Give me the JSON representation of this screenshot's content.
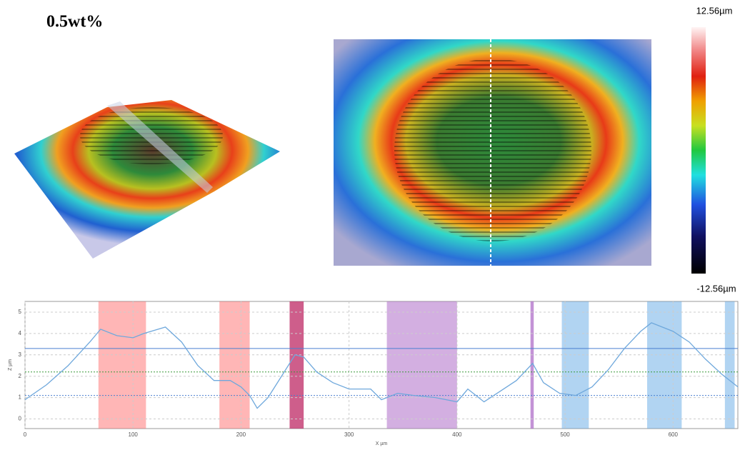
{
  "title": "0.5wt%",
  "colorbar": {
    "max_label": "12.56µm",
    "min_label": "-12.56µm"
  },
  "chart_data": {
    "type": "line",
    "xlabel": "X µm",
    "ylabel": "Z µm",
    "xlim": [
      0,
      660
    ],
    "ylim": [
      -0.45,
      5.5
    ],
    "xticks": [
      0,
      100,
      200,
      300,
      400,
      500,
      600
    ],
    "yticks": [
      0,
      1,
      2,
      3,
      4,
      5
    ],
    "grid": true,
    "x": [
      0,
      20,
      40,
      60,
      70,
      85,
      100,
      110,
      130,
      145,
      160,
      175,
      190,
      200,
      208,
      215,
      225,
      240,
      250,
      258,
      270,
      285,
      300,
      320,
      330,
      345,
      360,
      380,
      400,
      410,
      425,
      440,
      455,
      470,
      480,
      495,
      510,
      525,
      540,
      555,
      570,
      580,
      590,
      600,
      615,
      630,
      645,
      660
    ],
    "series": [
      {
        "color": "#6fa8dc",
        "values": [
          0.9,
          1.6,
          2.5,
          3.6,
          4.2,
          3.9,
          3.8,
          4.0,
          4.3,
          3.6,
          2.5,
          1.8,
          1.8,
          1.5,
          1.1,
          0.5,
          1.0,
          2.2,
          3.0,
          2.9,
          2.2,
          1.7,
          1.4,
          1.4,
          0.9,
          1.2,
          1.1,
          1.0,
          0.8,
          1.4,
          0.8,
          1.3,
          1.8,
          2.6,
          1.7,
          1.2,
          1.1,
          1.5,
          2.3,
          3.3,
          4.1,
          4.5,
          4.3,
          4.1,
          3.6,
          2.8,
          2.1,
          1.5
        ]
      }
    ],
    "bands": [
      {
        "x": [
          68,
          112
        ],
        "color": "rgba(255,110,110,0.5)"
      },
      {
        "x": [
          180,
          208
        ],
        "color": "rgba(255,110,110,0.5)"
      },
      {
        "x": [
          245,
          258
        ],
        "color": "rgba(190,40,100,0.75)"
      },
      {
        "x": [
          335,
          400
        ],
        "color": "rgba(175,110,200,0.55)"
      },
      {
        "x": [
          468,
          471
        ],
        "color": "rgba(175,110,200,0.75)"
      },
      {
        "x": [
          497,
          522
        ],
        "color": "rgba(100,170,230,0.5)"
      },
      {
        "x": [
          576,
          608
        ],
        "color": "rgba(100,170,230,0.5)"
      },
      {
        "x": [
          648,
          657
        ],
        "color": "rgba(100,170,230,0.5)"
      }
    ],
    "hlines": [
      {
        "value": 3.3,
        "color": "#4a7fd0",
        "dash": "none"
      },
      {
        "value": 2.2,
        "color": "#3a9a3a",
        "dash": "2 2"
      },
      {
        "value": 1.1,
        "color": "#4a7fd0",
        "dash": "2 2"
      }
    ]
  }
}
